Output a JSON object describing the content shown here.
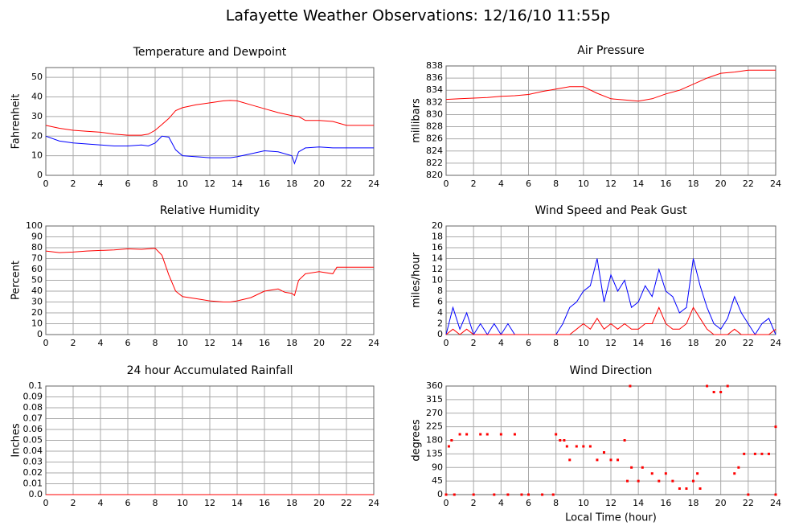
{
  "title": "Lafayette Weather Observations: 12/16/10 11:55p",
  "chart_data": [
    {
      "type": "line",
      "title": "Temperature and Dewpoint",
      "ylabel": "Fahrenheit",
      "x": [
        0,
        1,
        2,
        3,
        4,
        5,
        6,
        7,
        7.5,
        8,
        8.5,
        9,
        9.5,
        10,
        11,
        12,
        13,
        13.5,
        14,
        15,
        16,
        17,
        18,
        18.2,
        18.5,
        19,
        20,
        21,
        22,
        23,
        24
      ],
      "series": [
        {
          "color": "#ff0000",
          "values": [
            25.5,
            24,
            23,
            22.5,
            22,
            21,
            20.5,
            20.5,
            21,
            23,
            26,
            29,
            33,
            34.5,
            36,
            37,
            38,
            38.2,
            38,
            36,
            34,
            32,
            30.5,
            30.3,
            30,
            28,
            28,
            27.5,
            25.5,
            25.5,
            25.5
          ]
        },
        {
          "color": "#0000ff",
          "values": [
            20,
            17.5,
            16.5,
            16,
            15.5,
            15,
            15,
            15.5,
            15,
            16.5,
            20,
            19.5,
            13,
            10,
            9.5,
            9,
            9,
            9,
            9.5,
            11,
            12.5,
            12,
            10,
            6,
            12,
            14,
            14.5,
            14,
            14,
            14,
            14
          ]
        }
      ],
      "xlim": [
        0,
        24
      ],
      "xticks": [
        0,
        2,
        4,
        6,
        8,
        10,
        12,
        14,
        16,
        18,
        20,
        22,
        24
      ],
      "ylim": [
        0,
        55
      ],
      "yticks": [
        0,
        10,
        20,
        30,
        40,
        50
      ],
      "grid": true
    },
    {
      "type": "line",
      "title": "Air Pressure",
      "ylabel": "millibars",
      "x": [
        0,
        1,
        2,
        3,
        4,
        5,
        6,
        7,
        8,
        9,
        10,
        11,
        12,
        13,
        14,
        15,
        16,
        17,
        18,
        19,
        20,
        21,
        22,
        23,
        24
      ],
      "series": [
        {
          "color": "#ff0000",
          "values": [
            832.5,
            832.6,
            832.7,
            832.8,
            833,
            833.1,
            833.3,
            833.8,
            834.2,
            834.6,
            834.6,
            833.5,
            832.6,
            832.4,
            832.2,
            832.6,
            833.4,
            834,
            835,
            836,
            836.8,
            837,
            837.3,
            837.3,
            837.3
          ]
        }
      ],
      "xlim": [
        0,
        24
      ],
      "xticks": [
        0,
        2,
        4,
        6,
        8,
        10,
        12,
        14,
        16,
        18,
        20,
        22,
        24
      ],
      "ylim": [
        820,
        838
      ],
      "yticks": [
        820,
        822,
        824,
        826,
        828,
        830,
        832,
        834,
        836,
        838
      ],
      "grid": true
    },
    {
      "type": "line",
      "title": "Relative Humidity",
      "ylabel": "Percent",
      "x": [
        0,
        1,
        2,
        3,
        4,
        5,
        6,
        7,
        8,
        8.5,
        9,
        9.5,
        10,
        11,
        12,
        13,
        13.5,
        14,
        15,
        16,
        17,
        17.5,
        18,
        18.2,
        18.5,
        19,
        20,
        21,
        21.3,
        22,
        23,
        24
      ],
      "series": [
        {
          "color": "#ff0000",
          "values": [
            77,
            75.5,
            76,
            77,
            77.5,
            78,
            79,
            78.5,
            79.5,
            73,
            55,
            40,
            35,
            33,
            31,
            30,
            30,
            31,
            34,
            40,
            42,
            39,
            38,
            36,
            50,
            56,
            58,
            56,
            62,
            62,
            62,
            62
          ]
        }
      ],
      "xlim": [
        0,
        24
      ],
      "xticks": [
        0,
        2,
        4,
        6,
        8,
        10,
        12,
        14,
        16,
        18,
        20,
        22,
        24
      ],
      "ylim": [
        0,
        100
      ],
      "yticks": [
        0,
        10,
        20,
        30,
        40,
        50,
        60,
        70,
        80,
        90,
        100
      ],
      "grid": true
    },
    {
      "type": "line",
      "title": "Wind Speed and Peak Gust",
      "ylabel": "miles/hour",
      "x": [
        0,
        0.5,
        1,
        1.5,
        2,
        2.5,
        3,
        3.5,
        4,
        4.5,
        5,
        5.5,
        6,
        6.5,
        7,
        7.5,
        8,
        8.5,
        9,
        9.5,
        10,
        10.5,
        11,
        11.5,
        12,
        12.5,
        13,
        13.5,
        14,
        14.5,
        15,
        15.5,
        16,
        16.5,
        17,
        17.5,
        18,
        18.5,
        19,
        19.5,
        20,
        20.5,
        21,
        21.5,
        22,
        22.5,
        23,
        23.5,
        24
      ],
      "series": [
        {
          "color": "#0000ff",
          "values": [
            0,
            5,
            1,
            4,
            0,
            2,
            0,
            2,
            0,
            2,
            0,
            0,
            0,
            0,
            0,
            0,
            0,
            2,
            5,
            6,
            8,
            9,
            14,
            6,
            11,
            8,
            10,
            5,
            6,
            9,
            7,
            12,
            8,
            7,
            4,
            5,
            14,
            9,
            5,
            2,
            1,
            3,
            7,
            4,
            2,
            0,
            2,
            3,
            0
          ]
        },
        {
          "color": "#ff0000",
          "values": [
            0,
            1,
            0,
            1,
            0,
            0,
            0,
            0,
            0,
            0,
            0,
            0,
            0,
            0,
            0,
            0,
            0,
            0,
            0,
            1,
            2,
            1,
            3,
            1,
            2,
            1,
            2,
            1,
            1,
            2,
            2,
            5,
            2,
            1,
            1,
            2,
            5,
            3,
            1,
            0,
            0,
            0,
            1,
            0,
            0,
            0,
            0,
            0,
            1
          ]
        }
      ],
      "xlim": [
        0,
        24
      ],
      "xticks": [
        0,
        2,
        4,
        6,
        8,
        10,
        12,
        14,
        16,
        18,
        20,
        22,
        24
      ],
      "ylim": [
        0,
        20
      ],
      "yticks": [
        0,
        2,
        4,
        6,
        8,
        10,
        12,
        14,
        16,
        18,
        20
      ],
      "grid": true
    },
    {
      "type": "line",
      "title": "24 hour Accumulated Rainfall",
      "ylabel": "Inches",
      "x": [
        0,
        24
      ],
      "series": [
        {
          "color": "#ff0000",
          "values": [
            0,
            0
          ]
        }
      ],
      "xlim": [
        0,
        24
      ],
      "xticks": [
        0,
        2,
        4,
        6,
        8,
        10,
        12,
        14,
        16,
        18,
        20,
        22,
        24
      ],
      "ylim": [
        0,
        0.1
      ],
      "yticks": [
        {
          "value": 0,
          "label": "0.0"
        },
        0.01,
        0.02,
        0.03,
        0.04,
        0.05,
        0.06,
        0.07,
        0.08,
        0.09,
        0.1
      ],
      "grid": true
    },
    {
      "type": "scatter",
      "title": "Wind Direction",
      "ylabel": "degrees",
      "xlabel": "Local Time (hour)",
      "x": [
        0,
        0.2,
        0.4,
        0.6,
        1,
        1.5,
        2,
        2.5,
        3,
        3.5,
        4,
        4.5,
        5,
        5.5,
        6,
        7,
        7.8,
        8,
        8.3,
        8.6,
        8.8,
        9,
        9.5,
        10,
        10.5,
        11,
        11.5,
        12,
        12.5,
        13,
        13.2,
        13.4,
        13.5,
        14,
        14.3,
        15,
        15.5,
        16,
        16.5,
        17,
        17.5,
        18,
        18.3,
        18.5,
        19,
        19.5,
        20,
        20.5,
        21,
        21.3,
        21.7,
        22,
        22.5,
        23,
        23.5,
        24,
        24
      ],
      "series": [
        {
          "color": "#ff0000",
          "values": [
            0,
            160,
            180,
            0,
            200,
            200,
            0,
            200,
            200,
            0,
            200,
            0,
            200,
            0,
            0,
            0,
            0,
            200,
            180,
            180,
            160,
            115,
            160,
            160,
            160,
            115,
            140,
            115,
            115,
            180,
            45,
            360,
            90,
            45,
            90,
            70,
            45,
            70,
            45,
            20,
            20,
            45,
            70,
            20,
            360,
            340,
            340,
            360,
            70,
            90,
            135,
            0,
            135,
            135,
            135,
            0,
            225
          ]
        }
      ],
      "xlim": [
        0,
        24
      ],
      "xticks": [
        0,
        2,
        4,
        6,
        8,
        10,
        12,
        14,
        16,
        18,
        20,
        22,
        24
      ],
      "ylim": [
        0,
        360
      ],
      "yticks": [
        0,
        45,
        90,
        135,
        180,
        225,
        270,
        315,
        360
      ],
      "grid": true
    }
  ]
}
